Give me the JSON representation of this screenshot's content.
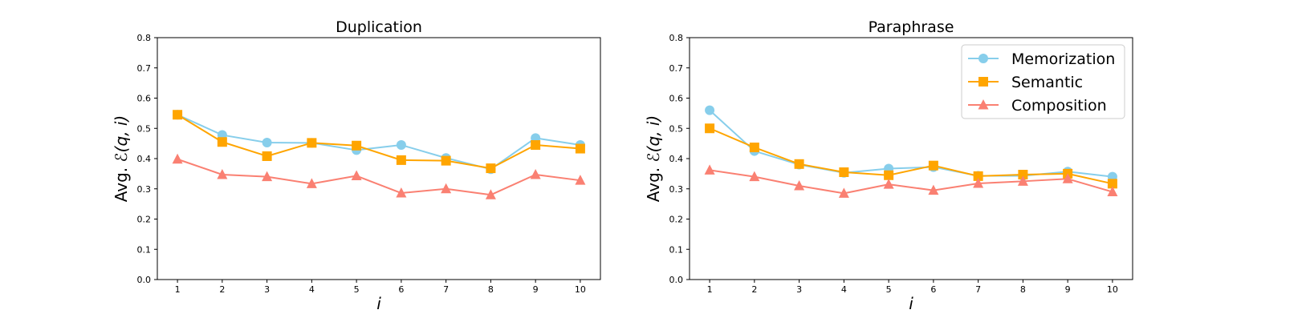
{
  "chart_data": [
    {
      "type": "line",
      "title": "Duplication",
      "xlabel": "i",
      "ylabel_prefix": "Avg. ",
      "ylabel_math": "ℰ(q, i)",
      "x": [
        1,
        2,
        3,
        4,
        5,
        6,
        7,
        8,
        9,
        10
      ],
      "xlim": [
        0.55,
        10.45
      ],
      "ylim": [
        0.0,
        0.8
      ],
      "yticks": [
        "0.0",
        "0.1",
        "0.2",
        "0.3",
        "0.4",
        "0.5",
        "0.6",
        "0.7",
        "0.8"
      ],
      "legend": false,
      "series": [
        {
          "name": "Memorization",
          "marker": "circle",
          "color": "#87CEEB",
          "values": [
            0.545,
            0.478,
            0.453,
            0.452,
            0.428,
            0.445,
            0.402,
            0.365,
            0.468,
            0.445
          ]
        },
        {
          "name": "Semantic",
          "marker": "square",
          "color": "#FFA500",
          "values": [
            0.545,
            0.455,
            0.408,
            0.452,
            0.443,
            0.395,
            0.393,
            0.368,
            0.445,
            0.433
          ]
        },
        {
          "name": "Composition",
          "marker": "triangle",
          "color": "#FA8072",
          "values": [
            0.398,
            0.347,
            0.34,
            0.317,
            0.343,
            0.286,
            0.3,
            0.28,
            0.347,
            0.328
          ]
        }
      ]
    },
    {
      "type": "line",
      "title": "Paraphrase",
      "xlabel": "i",
      "ylabel_prefix": "Avg. ",
      "ylabel_math": "ℰ(q, i)",
      "x": [
        1,
        2,
        3,
        4,
        5,
        6,
        7,
        8,
        9,
        10
      ],
      "xlim": [
        0.55,
        10.45
      ],
      "ylim": [
        0.0,
        0.8
      ],
      "yticks": [
        "0.0",
        "0.1",
        "0.2",
        "0.3",
        "0.4",
        "0.5",
        "0.6",
        "0.7",
        "0.8"
      ],
      "legend": true,
      "legend_position": "top-right",
      "series": [
        {
          "name": "Memorization",
          "marker": "circle",
          "color": "#87CEEB",
          "values": [
            0.56,
            0.425,
            0.38,
            0.353,
            0.367,
            0.372,
            0.343,
            0.343,
            0.357,
            0.34
          ]
        },
        {
          "name": "Semantic",
          "marker": "square",
          "color": "#FFA500",
          "values": [
            0.5,
            0.437,
            0.382,
            0.355,
            0.345,
            0.377,
            0.342,
            0.347,
            0.35,
            0.317
          ]
        },
        {
          "name": "Composition",
          "marker": "triangle",
          "color": "#FA8072",
          "values": [
            0.362,
            0.34,
            0.31,
            0.285,
            0.315,
            0.295,
            0.318,
            0.325,
            0.333,
            0.29
          ]
        }
      ]
    }
  ]
}
